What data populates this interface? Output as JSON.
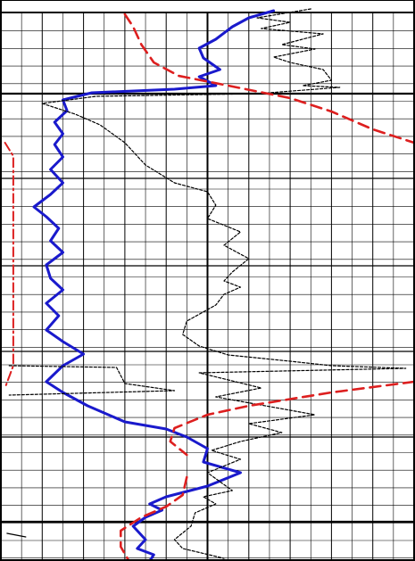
{
  "chart_data": {
    "type": "line",
    "title": "",
    "xlabel": "",
    "ylabel": "",
    "grid": true,
    "colors": {
      "background": "#ffffff",
      "grid_minor": "#000000",
      "grid_major": "#000000",
      "blue": "#1a1acc",
      "black": "#000000",
      "red": "#dd1f1f"
    },
    "axes": {
      "x_range": [
        0,
        10
      ],
      "y_range": [
        0,
        62.9
      ],
      "x_minor_lines": [
        0.5,
        1.5,
        2.5,
        3.5,
        4.5,
        5.5,
        6.5,
        7.5,
        8.5,
        9.5
      ],
      "x_major_lines": [
        1,
        2,
        3,
        4,
        5,
        6,
        7,
        8,
        9
      ],
      "x_emphasis_line": 5,
      "y_minor_step": 1.97,
      "y_major_lines": [
        10.5,
        20,
        29.8,
        39.4,
        49,
        58.5
      ],
      "y_emphasis_lines": [
        10.5,
        58.5
      ]
    },
    "series": [
      {
        "color_key": "blue",
        "style": "solid",
        "points": [
          [
            6.6,
            1.2
          ],
          [
            6.0,
            2.0
          ],
          [
            5.6,
            3.0
          ],
          [
            5.2,
            4.4
          ],
          [
            4.8,
            5.4
          ],
          [
            4.9,
            6.5
          ],
          [
            5.3,
            7.8
          ],
          [
            4.8,
            8.6
          ],
          [
            5.2,
            9.6
          ],
          [
            4.2,
            10.0
          ],
          [
            2.2,
            10.4
          ],
          [
            1.5,
            11.2
          ],
          [
            1.6,
            12.4
          ],
          [
            1.3,
            13.7
          ],
          [
            1.5,
            15.0
          ],
          [
            1.3,
            16.2
          ],
          [
            1.5,
            17.6
          ],
          [
            1.2,
            19.0
          ],
          [
            1.5,
            20.5
          ],
          [
            1.2,
            21.8
          ],
          [
            0.8,
            23.2
          ],
          [
            1.1,
            24.3
          ],
          [
            1.4,
            25.6
          ],
          [
            1.2,
            27.0
          ],
          [
            1.5,
            28.3
          ],
          [
            1.1,
            29.7
          ],
          [
            1.2,
            31.2
          ],
          [
            1.5,
            32.5
          ],
          [
            1.1,
            34.0
          ],
          [
            1.4,
            35.4
          ],
          [
            1.1,
            37.0
          ],
          [
            1.5,
            38.3
          ],
          [
            2.0,
            39.7
          ],
          [
            1.5,
            41.0
          ],
          [
            1.1,
            42.8
          ],
          [
            1.5,
            44.0
          ],
          [
            2.1,
            45.5
          ],
          [
            3.0,
            47.3
          ],
          [
            4.0,
            48.1
          ],
          [
            4.5,
            49.0
          ],
          [
            5.0,
            50.3
          ],
          [
            4.9,
            51.8
          ],
          [
            5.8,
            53.0
          ],
          [
            5.0,
            54.5
          ],
          [
            4.0,
            55.7
          ],
          [
            3.6,
            56.5
          ],
          [
            3.9,
            57.2
          ],
          [
            3.5,
            58.0
          ],
          [
            3.2,
            59.0
          ],
          [
            3.5,
            60.5
          ],
          [
            3.3,
            61.5
          ],
          [
            3.7,
            62.2
          ],
          [
            3.6,
            62.9
          ]
        ]
      },
      {
        "color_key": "black",
        "style": "dotted",
        "points": [
          [
            7.5,
            1.0
          ],
          [
            6.2,
            2.0
          ],
          [
            7.0,
            2.5
          ],
          [
            6.3,
            3.2
          ],
          [
            7.8,
            3.8
          ],
          [
            6.8,
            5.0
          ],
          [
            7.6,
            5.5
          ],
          [
            6.6,
            6.4
          ],
          [
            7.0,
            7.0
          ],
          [
            7.8,
            7.8
          ],
          [
            8.0,
            9.0
          ],
          [
            7.3,
            9.6
          ],
          [
            8.2,
            9.8
          ],
          [
            6.2,
            10.5
          ],
          [
            2.3,
            10.8
          ],
          [
            1.0,
            11.6
          ],
          [
            1.8,
            12.8
          ],
          [
            2.4,
            14.0
          ],
          [
            3.0,
            16.0
          ],
          [
            3.5,
            18.5
          ],
          [
            4.2,
            20.5
          ],
          [
            5.0,
            21.5
          ],
          [
            5.2,
            23.0
          ],
          [
            5.0,
            24.5
          ],
          [
            5.8,
            26.0
          ],
          [
            5.4,
            27.5
          ],
          [
            6.0,
            29.0
          ],
          [
            5.6,
            30.5
          ],
          [
            5.4,
            31.5
          ],
          [
            5.8,
            32.2
          ],
          [
            5.4,
            33.0
          ],
          [
            5.2,
            34.2
          ],
          [
            4.5,
            36.0
          ],
          [
            4.4,
            37.5
          ],
          [
            4.8,
            38.8
          ],
          [
            5.5,
            39.8
          ],
          [
            7.0,
            40.5
          ],
          [
            8.0,
            41.0
          ],
          [
            9.8,
            41.3
          ],
          [
            4.8,
            41.8
          ],
          [
            6.3,
            43.5
          ],
          [
            5.2,
            44.5
          ],
          [
            7.6,
            46.5
          ],
          [
            6.0,
            47.5
          ],
          [
            6.8,
            48.5
          ],
          [
            5.8,
            49.5
          ],
          [
            5.1,
            50.5
          ],
          [
            5.8,
            51.5
          ],
          [
            5.0,
            53.0
          ],
          [
            5.6,
            55.0
          ],
          [
            4.9,
            55.7
          ],
          [
            5.2,
            56.5
          ],
          [
            4.7,
            57.5
          ],
          [
            4.6,
            59.0
          ],
          [
            4.2,
            60.5
          ],
          [
            4.4,
            61.5
          ],
          [
            5.4,
            62.6
          ]
        ]
      },
      {
        "color_key": "black",
        "style": "dotted",
        "points": [
          [
            0.2,
            41.0
          ],
          [
            2.8,
            41.2
          ],
          [
            3.0,
            43.0
          ],
          [
            4.2,
            43.8
          ],
          [
            0.2,
            44.3
          ]
        ]
      },
      {
        "color_key": "red",
        "style": "dashed",
        "points": [
          [
            3.0,
            1.6
          ],
          [
            3.2,
            3.0
          ],
          [
            3.4,
            5.0
          ],
          [
            3.7,
            7.0
          ],
          [
            4.3,
            8.5
          ],
          [
            5.5,
            9.6
          ],
          [
            7.0,
            11.0
          ],
          [
            8.0,
            12.5
          ],
          [
            9.0,
            14.5
          ],
          [
            10.0,
            16.0
          ]
        ]
      },
      {
        "color_key": "red",
        "style": "dashed",
        "points": [
          [
            10.0,
            42.8
          ],
          [
            8.0,
            44.0
          ],
          [
            6.0,
            45.5
          ],
          [
            5.0,
            46.5
          ],
          [
            4.2,
            48.0
          ],
          [
            4.1,
            49.5
          ],
          [
            4.5,
            51.0
          ]
        ]
      },
      {
        "color_key": "red",
        "style": "dashed",
        "points": [
          [
            4.5,
            53.5
          ],
          [
            4.4,
            55.5
          ],
          [
            4.0,
            56.8
          ],
          [
            3.4,
            58.0
          ],
          [
            2.9,
            59.5
          ],
          [
            2.9,
            61.3
          ],
          [
            3.1,
            62.9
          ]
        ]
      },
      {
        "color_key": "red",
        "style": "dashdot",
        "points": [
          [
            0.1,
            16.0
          ],
          [
            0.3,
            17.5
          ],
          [
            0.3,
            41.0
          ],
          [
            0.1,
            43.5
          ]
        ]
      },
      {
        "color_key": "black",
        "style": "solid",
        "points": [
          [
            0.15,
            59.8
          ],
          [
            0.6,
            60.2
          ]
        ]
      }
    ]
  }
}
